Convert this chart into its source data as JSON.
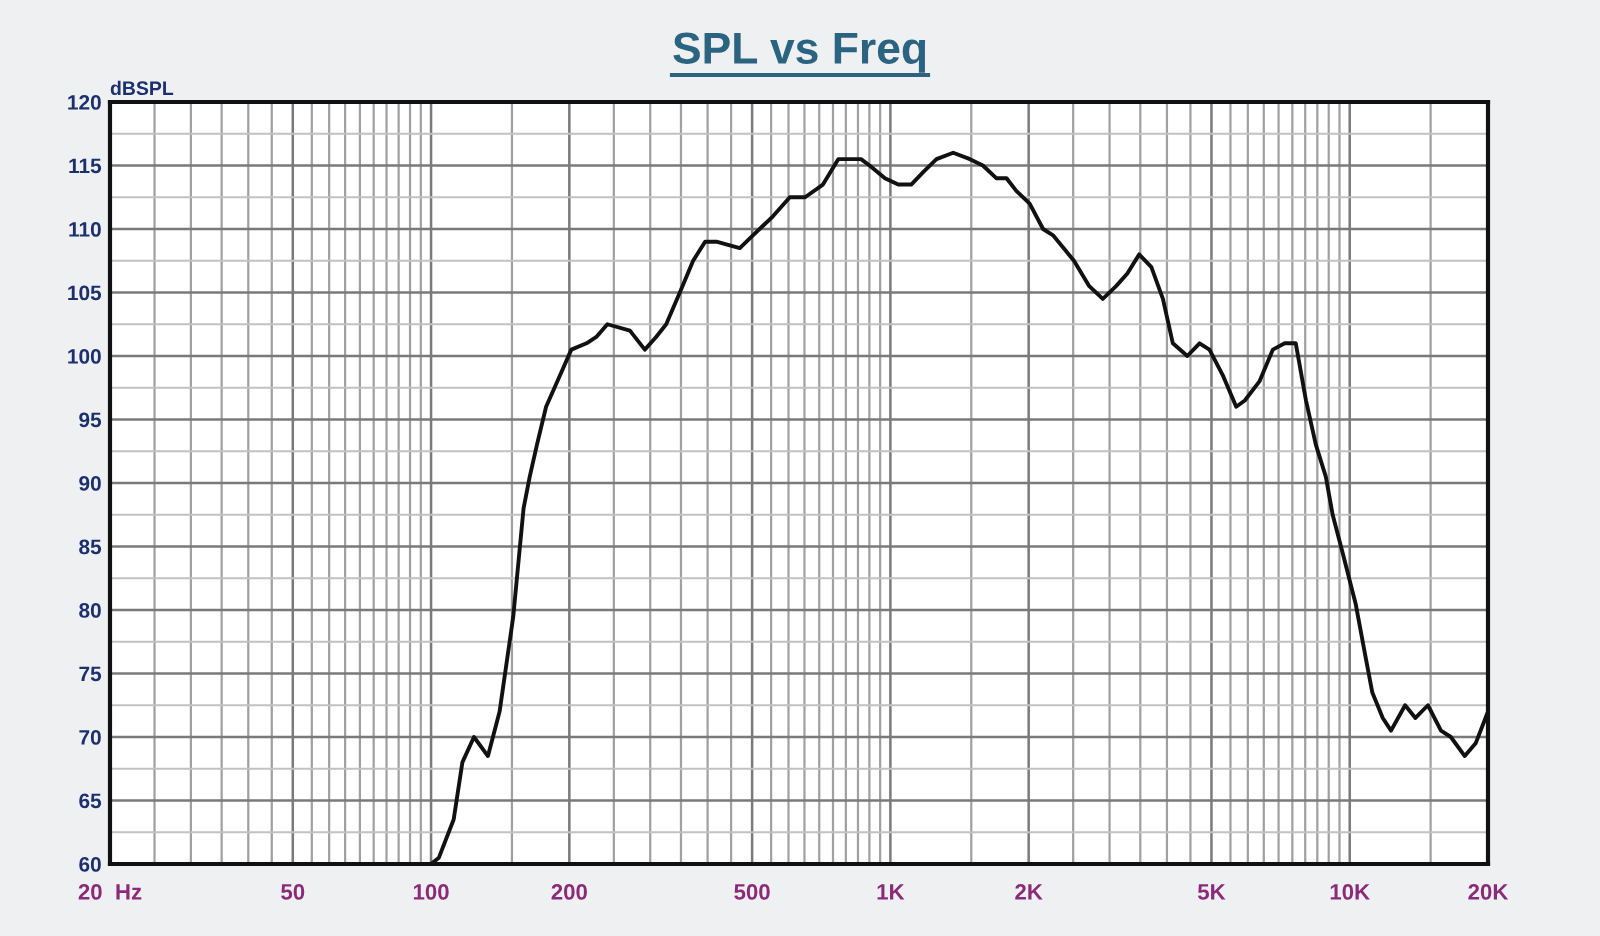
{
  "chart_data": {
    "type": "line",
    "title": "SPL vs Freq",
    "ylabel": "dBSPL",
    "log": "x",
    "x": [
      100,
      104,
      112,
      117,
      124,
      133,
      141,
      151,
      159,
      164,
      170,
      178,
      191,
      202,
      218,
      229,
      242,
      271,
      292,
      309,
      325,
      348,
      372,
      395,
      418,
      470,
      502,
      555,
      604,
      652,
      713,
      770,
      863,
      901,
      973,
      1040,
      1110,
      1180,
      1260,
      1370,
      1490,
      1590,
      1700,
      1790,
      1880,
      2010,
      2150,
      2260,
      2510,
      2710,
      2900,
      3100,
      3280,
      3480,
      3700,
      3920,
      4120,
      4430,
      4710,
      4950,
      5290,
      5660,
      5910,
      6360,
      6800,
      7220,
      7630,
      8030,
      8440,
      8870,
      9180,
      9650,
      10300,
      10800,
      11200,
      11800,
      12300,
      13200,
      13900,
      14800,
      15800,
      16600,
      17800,
      18800,
      20000
    ],
    "series": [
      {
        "color": "#111111",
        "values": [
          60,
          60.5,
          63.5,
          68,
          70,
          68.5,
          72,
          79.5,
          88,
          90.5,
          93,
          96,
          98.5,
          100.5,
          101,
          101.5,
          102.5,
          102,
          100.5,
          101.5,
          102.5,
          105,
          107.5,
          109,
          109,
          108.5,
          109.5,
          111,
          112.5,
          112.5,
          113.5,
          115.5,
          115.5,
          115,
          114,
          113.5,
          113.5,
          114.5,
          115.5,
          116,
          115.5,
          115,
          114,
          114,
          113,
          112,
          110,
          109.5,
          107.5,
          105.5,
          104.5,
          105.5,
          106.5,
          108,
          107,
          104.5,
          101,
          100,
          101,
          100.5,
          98.5,
          96,
          96.5,
          98,
          100.5,
          101,
          101,
          96.5,
          93,
          90.5,
          87.5,
          84.5,
          80.5,
          76.5,
          73.5,
          71.5,
          70.5,
          72.5,
          71.5,
          72.5,
          70.5,
          70,
          68.5,
          69.5,
          72
        ]
      }
    ],
    "line_style": "solid",
    "xlim": [
      20,
      20000
    ],
    "ylim": [
      60,
      120
    ],
    "xticks": [
      {
        "value": 20,
        "label": "20  Hz"
      },
      {
        "value": 25,
        "label": null
      },
      {
        "value": 30,
        "label": null
      },
      {
        "value": 35,
        "label": null
      },
      {
        "value": 40,
        "label": null
      },
      {
        "value": 45,
        "label": null
      },
      50,
      {
        "value": 55,
        "label": null
      },
      {
        "value": 60,
        "label": null
      },
      {
        "value": 65,
        "label": null
      },
      {
        "value": 70,
        "label": null
      },
      {
        "value": 75,
        "label": null
      },
      {
        "value": 80,
        "label": null
      },
      {
        "value": 85,
        "label": null
      },
      {
        "value": 90,
        "label": null
      },
      {
        "value": 95,
        "label": null
      },
      100,
      {
        "value": 150,
        "label": null
      },
      200,
      {
        "value": 250,
        "label": null
      },
      {
        "value": 300,
        "label": null
      },
      {
        "value": 350,
        "label": null
      },
      {
        "value": 400,
        "label": null
      },
      {
        "value": 450,
        "label": null
      },
      500,
      {
        "value": 550,
        "label": null
      },
      {
        "value": 600,
        "label": null
      },
      {
        "value": 650,
        "label": null
      },
      {
        "value": 700,
        "label": null
      },
      {
        "value": 750,
        "label": null
      },
      {
        "value": 800,
        "label": null
      },
      {
        "value": 850,
        "label": null
      },
      {
        "value": 900,
        "label": null
      },
      {
        "value": 950,
        "label": null
      },
      {
        "value": 1000,
        "label": "1K"
      },
      {
        "value": 1500,
        "label": null
      },
      {
        "value": 2000,
        "label": "2K"
      },
      {
        "value": 2500,
        "label": null
      },
      {
        "value": 3000,
        "label": null
      },
      {
        "value": 3500,
        "label": null
      },
      {
        "value": 4000,
        "label": null
      },
      {
        "value": 4500,
        "label": null
      },
      {
        "value": 5000,
        "label": "5K"
      },
      {
        "value": 5500,
        "label": null
      },
      {
        "value": 6000,
        "label": null
      },
      {
        "value": 6500,
        "label": null
      },
      {
        "value": 7000,
        "label": null
      },
      {
        "value": 7500,
        "label": null
      },
      {
        "value": 8000,
        "label": null
      },
      {
        "value": 8500,
        "label": null
      },
      {
        "value": 9000,
        "label": null
      },
      {
        "value": 9500,
        "label": null
      },
      {
        "value": 10000,
        "label": "10K"
      },
      {
        "value": 15000,
        "label": null
      },
      {
        "value": 20000,
        "label": "20K"
      }
    ],
    "yticks": [
      60,
      {
        "value": 62.5,
        "label": null
      },
      65,
      {
        "value": 67.5,
        "label": null
      },
      70,
      {
        "value": 72.5,
        "label": null
      },
      75,
      {
        "value": 77.5,
        "label": null
      },
      80,
      {
        "value": 82.5,
        "label": null
      },
      85,
      {
        "value": 87.5,
        "label": null
      },
      90,
      {
        "value": 92.5,
        "label": null
      },
      95,
      {
        "value": 97.5,
        "label": null
      },
      100,
      {
        "value": 102.5,
        "label": null
      },
      105,
      {
        "value": 107.5,
        "label": null
      },
      110,
      {
        "value": 112.5,
        "label": null
      },
      115,
      {
        "value": 117.5,
        "label": null
      },
      120
    ],
    "grid": true
  }
}
